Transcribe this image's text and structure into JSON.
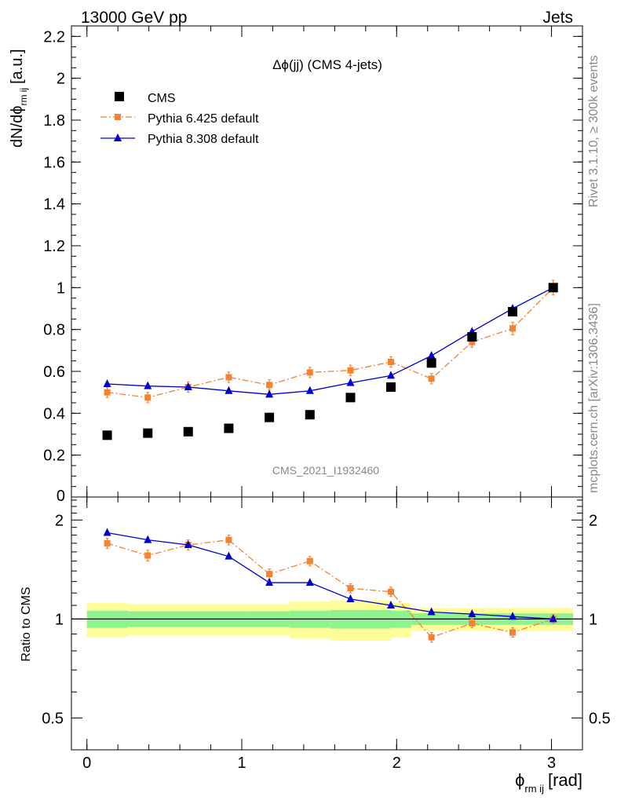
{
  "header": {
    "left": "13000 GeV pp",
    "right": "Jets"
  },
  "side": {
    "rivet": "Rivet 3.1.10, ≥ 300k events",
    "mcplots": "mcplots.cern.ch [arXiv:1306.3436]"
  },
  "chart_data": [
    {
      "type": "scatter",
      "title": "Δϕ(jj) (CMS 4-jets)",
      "watermark": "CMS_2021_I1932460",
      "ylabel": "dN/dϕ",
      "ylabel_sub": "rm ij",
      "ylabel_unit": "[a.u.]",
      "xlim": [
        -0.1,
        3.2
      ],
      "ylim": [
        0,
        2.25
      ],
      "yticks": [
        "0",
        "0.2",
        "0.4",
        "0.6",
        "0.8",
        "1",
        "1.2",
        "1.4",
        "1.6",
        "1.8",
        "2",
        "2.2"
      ],
      "legend_position": "top-left",
      "x": [
        0.131,
        0.393,
        0.654,
        0.916,
        1.178,
        1.44,
        1.702,
        1.963,
        2.225,
        2.487,
        2.749,
        3.011
      ],
      "series": [
        {
          "name": "CMS",
          "color": "#000000",
          "marker": "square",
          "values": [
            0.295,
            0.305,
            0.312,
            0.328,
            0.38,
            0.393,
            0.475,
            0.525,
            0.64,
            0.765,
            0.885,
            1.0
          ]
        },
        {
          "name": "Pythia 6.425 default",
          "color": "#f58231",
          "marker": "square",
          "line": "dash-dot",
          "values": [
            0.5,
            0.475,
            0.525,
            0.572,
            0.535,
            0.595,
            0.605,
            0.645,
            0.565,
            0.74,
            0.805,
            1.0
          ],
          "errors": [
            0.025,
            0.025,
            0.025,
            0.025,
            0.025,
            0.025,
            0.025,
            0.025,
            0.025,
            0.025,
            0.03,
            0.035
          ]
        },
        {
          "name": "Pythia 8.308 default",
          "color": "#0000cc",
          "marker": "triangle",
          "line": "solid",
          "values": [
            0.54,
            0.53,
            0.525,
            0.507,
            0.49,
            0.507,
            0.545,
            0.58,
            0.675,
            0.79,
            0.9,
            1.0
          ]
        }
      ]
    },
    {
      "type": "line",
      "ylabel": "Ratio to CMS",
      "xlabel": "ϕ",
      "xlabel_sub": "rm ij",
      "xlabel_unit": "[rad]",
      "ylim": [
        0.4,
        2.35
      ],
      "yscale": "log",
      "yticks": [
        "0.5",
        "1",
        "2"
      ],
      "xticks": [
        "0",
        "1",
        "2",
        "3"
      ],
      "x": [
        0.131,
        0.393,
        0.654,
        0.916,
        1.178,
        1.44,
        1.702,
        1.963,
        2.225,
        2.487,
        2.749,
        3.011
      ],
      "series": [
        {
          "name": "Pythia 6.425 default",
          "color": "#f58231",
          "marker": "square",
          "line": "dash-dot",
          "values": [
            1.7,
            1.56,
            1.68,
            1.74,
            1.37,
            1.5,
            1.24,
            1.21,
            0.88,
            0.97,
            0.91,
            1.0
          ],
          "errors": [
            0.06,
            0.06,
            0.06,
            0.06,
            0.05,
            0.05,
            0.04,
            0.04,
            0.03,
            0.03,
            0.03,
            0.03
          ]
        },
        {
          "name": "Pythia 8.308 default",
          "color": "#0000cc",
          "marker": "triangle",
          "line": "solid",
          "values": [
            1.83,
            1.74,
            1.68,
            1.55,
            1.29,
            1.29,
            1.15,
            1.1,
            1.05,
            1.035,
            1.017,
            1.0
          ]
        }
      ],
      "band_edges": [
        0,
        0.262,
        1.047,
        1.309,
        1.571,
        1.963,
        2.094,
        3.14
      ],
      "band_inner": [
        0.06,
        0.055,
        0.055,
        0.06,
        0.065,
        0.06,
        0.04
      ],
      "band_outer": [
        0.12,
        0.11,
        0.11,
        0.13,
        0.14,
        0.12,
        0.08
      ],
      "band_colors": {
        "inner": "#8ef28e",
        "outer": "#fdfd99"
      }
    }
  ]
}
